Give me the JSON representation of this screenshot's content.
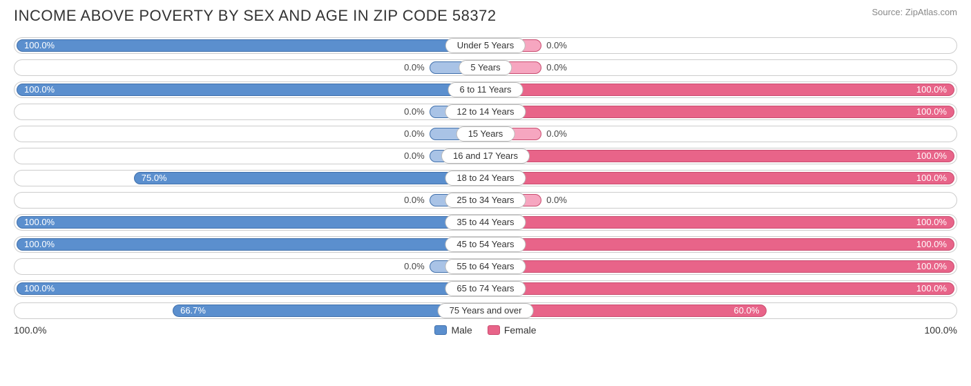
{
  "title": "INCOME ABOVE POVERTY BY SEX AND AGE IN ZIP CODE 58372",
  "source": "Source: ZipAtlas.com",
  "colors": {
    "male_fill": "#5b8fce",
    "male_border": "#3f6fab",
    "female_fill": "#e86489",
    "female_border": "#c94a6e",
    "female_zero_fill": "#f6a6c0",
    "male_zero_fill": "#a9c3e6",
    "track_border": "#cccccc",
    "text_dark": "#444444",
    "text_white": "#ffffff"
  },
  "axis": {
    "left_label": "100.0%",
    "right_label": "100.0%",
    "male_label": "Male",
    "female_label": "Female"
  },
  "zero_bar_percent": 12,
  "font": {
    "title_size": 22,
    "label_size": 13,
    "axis_size": 14
  },
  "rows": [
    {
      "category": "Under 5 Years",
      "male": 100.0,
      "female": 0.0
    },
    {
      "category": "5 Years",
      "male": 0.0,
      "female": 0.0
    },
    {
      "category": "6 to 11 Years",
      "male": 100.0,
      "female": 100.0
    },
    {
      "category": "12 to 14 Years",
      "male": 0.0,
      "female": 100.0
    },
    {
      "category": "15 Years",
      "male": 0.0,
      "female": 0.0
    },
    {
      "category": "16 and 17 Years",
      "male": 0.0,
      "female": 100.0
    },
    {
      "category": "18 to 24 Years",
      "male": 75.0,
      "female": 100.0
    },
    {
      "category": "25 to 34 Years",
      "male": 0.0,
      "female": 0.0
    },
    {
      "category": "35 to 44 Years",
      "male": 100.0,
      "female": 100.0
    },
    {
      "category": "45 to 54 Years",
      "male": 100.0,
      "female": 100.0
    },
    {
      "category": "55 to 64 Years",
      "male": 0.0,
      "female": 100.0
    },
    {
      "category": "65 to 74 Years",
      "male": 100.0,
      "female": 100.0
    },
    {
      "category": "75 Years and over",
      "male": 66.7,
      "female": 60.0
    }
  ]
}
